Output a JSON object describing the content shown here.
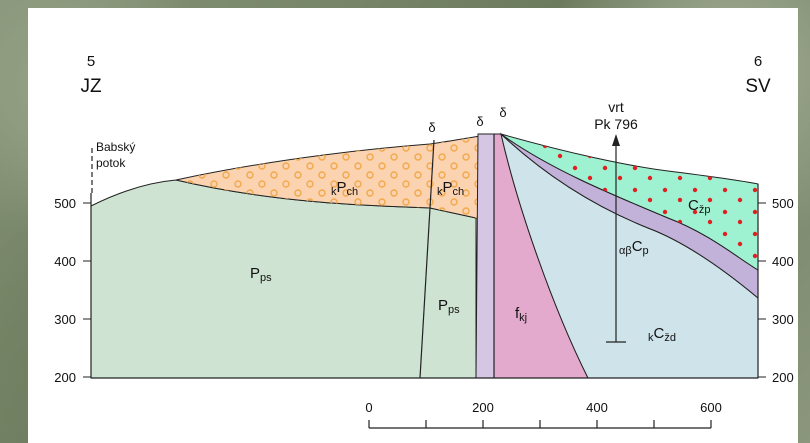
{
  "endpoints": {
    "left": {
      "number": "5",
      "code": "JZ"
    },
    "right": {
      "number": "6",
      "code": "SV"
    }
  },
  "stream": {
    "line1": "Babský",
    "line2": "potok"
  },
  "borehole": {
    "line1": "vrt",
    "line2": "Pk 796"
  },
  "delta_marks": [
    "δ",
    "δ",
    "δ"
  ],
  "elevation_ticks_left": [
    "500",
    "400",
    "300",
    "200"
  ],
  "elevation_ticks_right": [
    "500",
    "400",
    "300",
    "200"
  ],
  "scale_ticks": [
    "0",
    "200",
    "400",
    "600"
  ],
  "units": {
    "kpch_1": {
      "pre": "k",
      "main": "P",
      "sub": "ch"
    },
    "kpch_2": {
      "pre": "k",
      "main": "P",
      "sub": "ch"
    },
    "pps_1": {
      "main": "P",
      "sub": "ps"
    },
    "pps_2": {
      "main": "P",
      "sub": "ps"
    },
    "fkj": {
      "main": "f",
      "sub": "kj"
    },
    "czp": {
      "main": "C",
      "sub": "žp"
    },
    "abcp": {
      "pre": "αβ",
      "main": "C",
      "sub": "p"
    },
    "kczd": {
      "pre": "k",
      "main": "C",
      "sub": "žd"
    }
  },
  "colors": {
    "pps": "#cfe3d2",
    "kpch": "#fbd3b0",
    "fkj": "#e3aacd",
    "kczd": "#cfe3ea",
    "abcp": "#c2b2d9",
    "czp": "#9ef1d1",
    "dike": "#d5c6e4",
    "circle": "#f1a94c",
    "dot": "#e02020"
  }
}
